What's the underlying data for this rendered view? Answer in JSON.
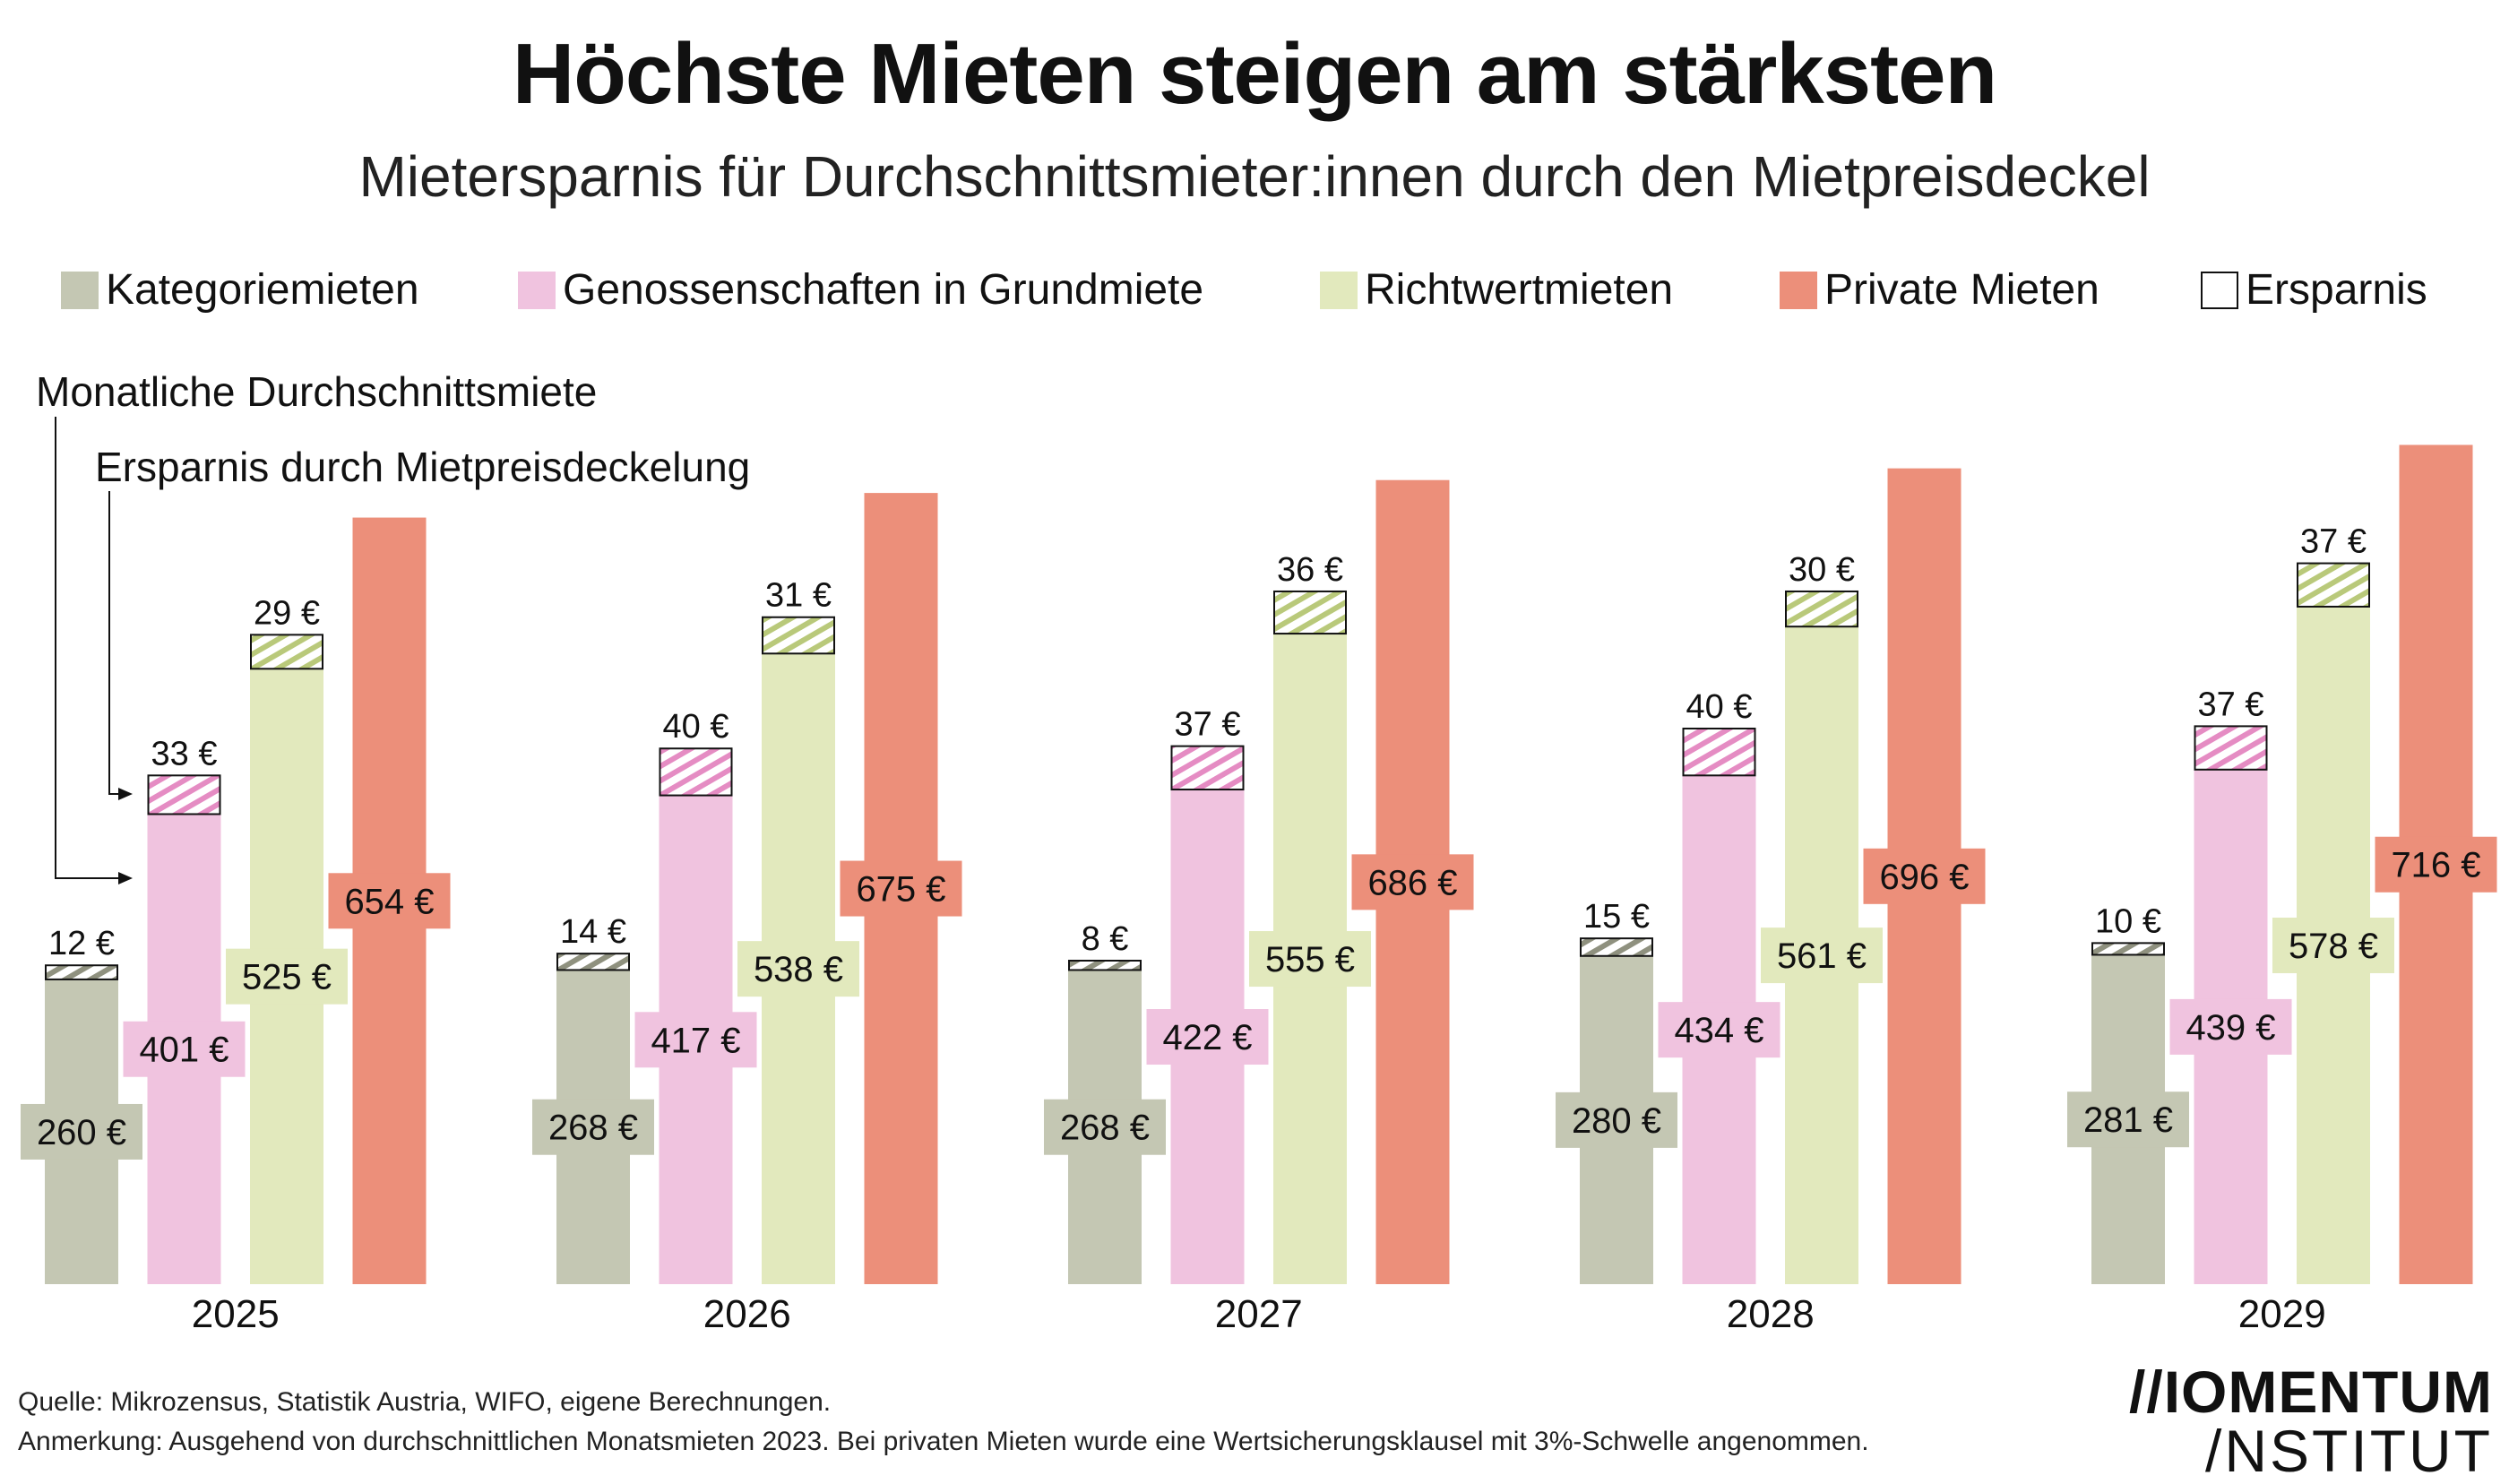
{
  "title": "Höchste Mieten steigen am stärksten",
  "subtitle": "Mietersparnis für Durchschnittsmieter:innen durch den Mietpreisdeckel",
  "legend": [
    {
      "label": "Kategoriemieten",
      "color": "#c4c7b3"
    },
    {
      "label": "Genossenschaften in Grundmiete",
      "color": "#f0c3df"
    },
    {
      "label": "Richtwertmieten",
      "color": "#e2e9bd"
    },
    {
      "label": "Private Mieten",
      "color": "#ec8f7a"
    },
    {
      "label": "Ersparnis",
      "color": "#ffffff"
    }
  ],
  "annotations": {
    "rent": "Monatliche Durchschnittsmiete",
    "saving": "Ersparnis durch Mietpreisdeckelung"
  },
  "chart_data": {
    "type": "bar",
    "stacked_saving": true,
    "categories": [
      "2025",
      "2026",
      "2027",
      "2028",
      "2029"
    ],
    "unit": "€",
    "series": [
      {
        "name": "Kategoriemieten",
        "color": "#c4c7b3",
        "hatch": "#8f917f",
        "values": [
          260,
          268,
          268,
          280,
          281
        ],
        "savings": [
          12,
          14,
          8,
          15,
          10
        ]
      },
      {
        "name": "Genossenschaften in Grundmiete",
        "color": "#f0c3df",
        "hatch": "#e58cc3",
        "values": [
          401,
          417,
          422,
          434,
          439
        ],
        "savings": [
          33,
          40,
          37,
          40,
          37
        ]
      },
      {
        "name": "Richtwertmieten",
        "color": "#e2e9bd",
        "hatch": "#b9c97a",
        "values": [
          525,
          538,
          555,
          561,
          578
        ],
        "savings": [
          29,
          31,
          36,
          30,
          37
        ]
      },
      {
        "name": "Private Mieten",
        "color": "#ec8f7a",
        "hatch": null,
        "values": [
          654,
          675,
          686,
          696,
          716
        ],
        "savings": [
          null,
          null,
          null,
          null,
          null
        ]
      }
    ]
  },
  "footer": {
    "source": "Quelle: Mikrozensus, Statistik Austria, WIFO, eigene Berechnungen.",
    "note": "Anmerkung: Ausgehend von durchschnittlichen Monatsmieten 2023. Bei privaten Mieten wurde eine Wertsicherungsklausel mit 3%-Schwelle angenommen."
  },
  "logo": {
    "line1": "//IOMENTUM",
    "line2": "/NSTITUT"
  }
}
